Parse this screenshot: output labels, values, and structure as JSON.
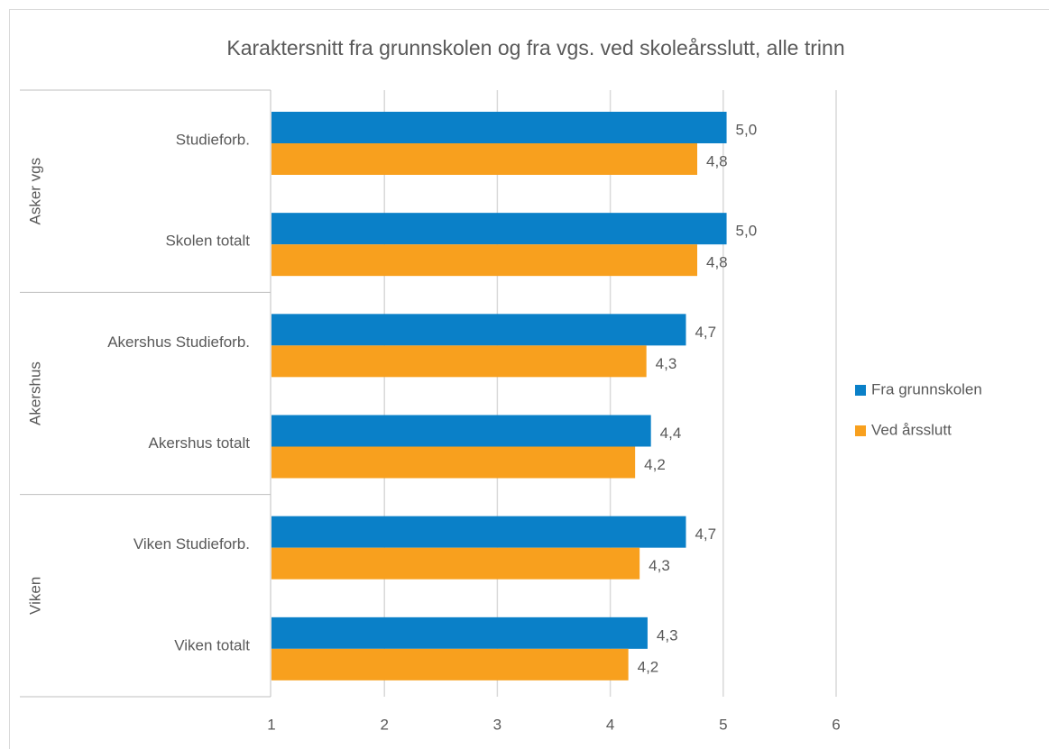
{
  "chart_data": {
    "type": "hbar",
    "title": "Karaktersnitt fra grunnskolen og fra vgs. ved skoleårsslutt, alle trinn",
    "groups": [
      {
        "name": "Asker vgs",
        "categories": [
          "Studieforb.",
          "Skolen totalt"
        ]
      },
      {
        "name": "Akershus",
        "categories": [
          "Akershus Studieforb.",
          "Akershus totalt"
        ]
      },
      {
        "name": "Viken",
        "categories": [
          "Viken Studieforb.",
          "Viken totalt"
        ]
      }
    ],
    "series": [
      {
        "name": "Fra grunnskolen",
        "color": "#0a80c8",
        "values": [
          5.03,
          5.03,
          4.67,
          4.36,
          4.67,
          4.33
        ],
        "value_labels": [
          "5,0",
          "5,0",
          "4,7",
          "4,4",
          "4,7",
          "4,3"
        ]
      },
      {
        "name": "Ved årsslutt",
        "color": "#f8a01e",
        "values": [
          4.77,
          4.77,
          4.32,
          4.22,
          4.26,
          4.16
        ],
        "value_labels": [
          "4,8",
          "4,8",
          "4,3",
          "4,2",
          "4,3",
          "4,2"
        ]
      }
    ],
    "xlim": [
      1,
      6
    ],
    "xticks": [
      1,
      2,
      3,
      4,
      5,
      6
    ],
    "grid": true,
    "legend": "right"
  }
}
